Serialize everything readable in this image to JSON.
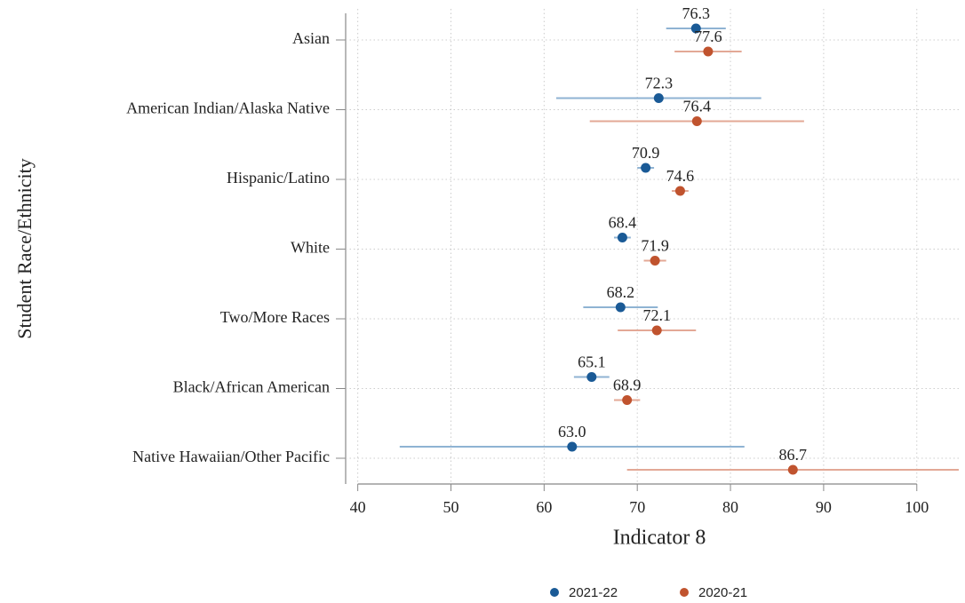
{
  "chart_data": {
    "type": "dot-errorbar",
    "x_label": "Indicator 8",
    "y_label": "Student Race/Ethnicity",
    "categories": [
      "Asian",
      "American Indian/Alaska Native",
      "Hispanic/Latino",
      "White",
      "Two/More Races",
      "Black/African American",
      "Native Hawaiian/Other Pacific"
    ],
    "series": [
      {
        "name": "2021-22",
        "color": "#1a5a96",
        "bar_color": "#8fb3d3",
        "values": [
          76.3,
          72.3,
          70.9,
          68.4,
          68.2,
          65.1,
          63.0
        ],
        "value_labels": [
          "76.3",
          "72.3",
          "70.9",
          "68.4",
          "68.2",
          "65.1",
          "63.0"
        ],
        "error": [
          3.2,
          11.0,
          0.9,
          0.9,
          4.0,
          1.9,
          18.5
        ]
      },
      {
        "name": "2020-21",
        "color": "#c0532e",
        "bar_color": "#e3a896",
        "values": [
          77.6,
          76.4,
          74.6,
          71.9,
          72.1,
          68.9,
          86.7
        ],
        "value_labels": [
          "77.6",
          "76.4",
          "74.6",
          "71.9",
          "72.1",
          "68.9",
          "86.7"
        ],
        "error": [
          3.6,
          11.5,
          0.9,
          1.2,
          4.2,
          1.4,
          17.8
        ]
      }
    ],
    "xlim": [
      38.7,
      104.6
    ],
    "xticks": [
      40,
      50,
      60,
      70,
      80,
      90,
      100
    ],
    "grid": true,
    "legend": "bottom"
  }
}
